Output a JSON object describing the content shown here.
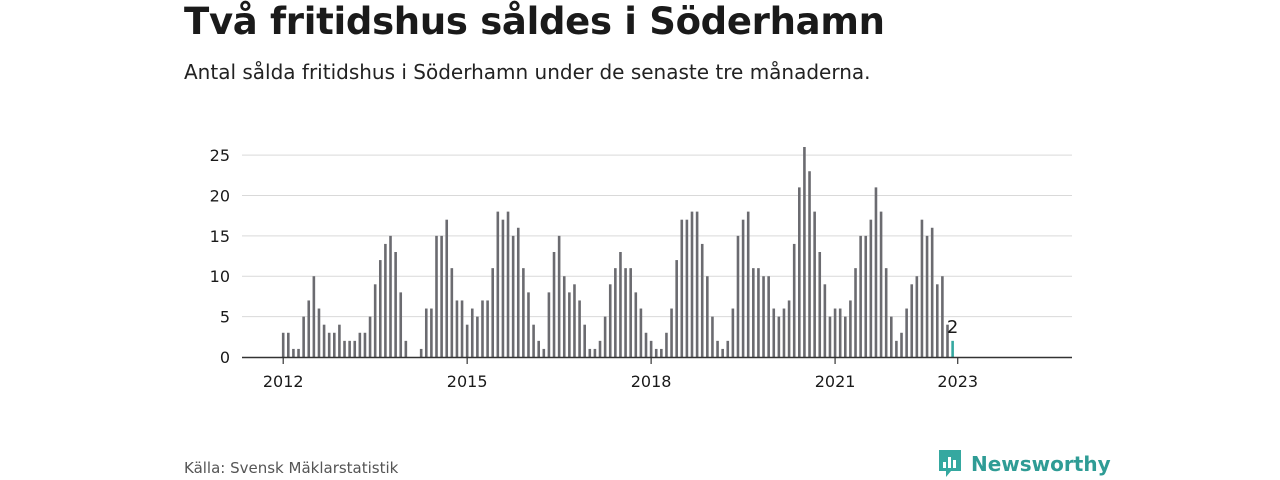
{
  "title": "Två fritidshus såldes i Söderhamn",
  "subtitle": "Antal sålda fritidshus i Söderhamn under de senaste tre månaderna.",
  "source": "Källa: Svensk Mäklarstatistik",
  "brand": {
    "name": "Newsworthy",
    "icon": "newsworthy-logo-icon",
    "color": "#2f9c95"
  },
  "colors": {
    "bar": "#6b6b70",
    "highlight": "#35a8a0",
    "grid": "#d9d9d9",
    "axis": "#333333"
  },
  "chart_data": {
    "type": "bar",
    "title": "Två fritidshus såldes i Söderhamn",
    "xlabel": "",
    "ylabel": "",
    "x_start": "2011-01",
    "x_tick_labels": [
      "2012",
      "2015",
      "2018",
      "2021",
      "2023"
    ],
    "y_ticks": [
      0,
      5,
      10,
      15,
      20,
      25
    ],
    "ylim": [
      0,
      26
    ],
    "grid": true,
    "highlight_last": true,
    "last_value_label": "2",
    "values": [
      0,
      0,
      0,
      0,
      0,
      0,
      0,
      0,
      0,
      0,
      0,
      0,
      3,
      3,
      1,
      1,
      5,
      7,
      10,
      6,
      4,
      3,
      3,
      4,
      2,
      2,
      2,
      3,
      3,
      5,
      9,
      12,
      14,
      15,
      13,
      8,
      2,
      0,
      0,
      1,
      6,
      6,
      15,
      15,
      17,
      11,
      7,
      7,
      4,
      6,
      5,
      7,
      7,
      11,
      18,
      17,
      18,
      15,
      16,
      11,
      8,
      4,
      2,
      1,
      8,
      13,
      15,
      10,
      8,
      9,
      7,
      4,
      1,
      1,
      2,
      5,
      9,
      11,
      13,
      11,
      11,
      8,
      6,
      3,
      2,
      1,
      1,
      3,
      6,
      12,
      17,
      17,
      18,
      18,
      14,
      10,
      5,
      2,
      1,
      2,
      6,
      15,
      17,
      18,
      11,
      11,
      10,
      10,
      6,
      5,
      6,
      7,
      14,
      21,
      26,
      23,
      18,
      13,
      9,
      5,
      6,
      6,
      5,
      7,
      11,
      15,
      15,
      17,
      21,
      18,
      11,
      5,
      2,
      3,
      6,
      9,
      10,
      17,
      15,
      16,
      9,
      10,
      4,
      2
    ]
  }
}
